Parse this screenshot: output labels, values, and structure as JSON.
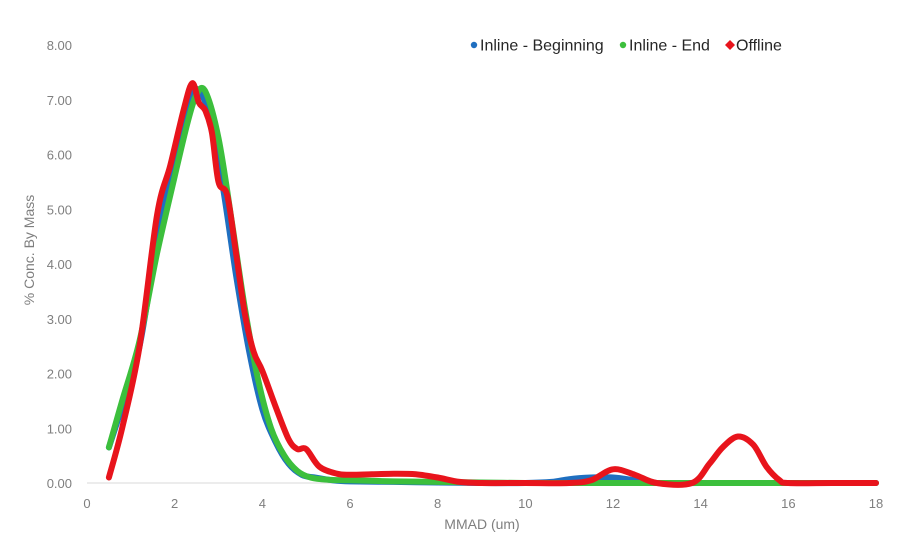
{
  "chart_data": {
    "type": "line",
    "xlabel": "MMAD (um)",
    "ylabel": "% Conc. By Mass",
    "xlim": [
      0,
      18
    ],
    "ylim": [
      0,
      8
    ],
    "x_ticks": [
      "0",
      "2",
      "4",
      "6",
      "8",
      "10",
      "12",
      "14",
      "16",
      "18"
    ],
    "y_ticks": [
      "0.00",
      "1.00",
      "2.00",
      "3.00",
      "4.00",
      "5.00",
      "6.00",
      "7.00",
      "8.00"
    ],
    "grid": false,
    "legend_position": "top-right",
    "series": [
      {
        "name": "Inline - Beginning",
        "color": "#1f6fc0",
        "marker": "circle",
        "x": [
          0.5,
          0.8,
          1.2,
          1.6,
          2.0,
          2.3,
          2.5,
          2.8,
          3.1,
          3.4,
          3.7,
          4.0,
          4.3,
          4.6,
          4.9,
          5.2,
          5.6,
          6.0,
          7.0,
          8.0,
          9.0,
          10.0,
          10.6,
          11.0,
          11.5,
          12.0,
          12.5,
          13.0,
          14.0,
          15.0,
          16.0,
          17.0,
          18.0
        ],
        "y": [
          0.65,
          1.4,
          2.5,
          4.4,
          5.9,
          6.8,
          7.2,
          6.7,
          5.4,
          3.8,
          2.4,
          1.35,
          0.75,
          0.35,
          0.15,
          0.1,
          0.05,
          0.03,
          0.02,
          0.01,
          0.0,
          0.0,
          0.02,
          0.07,
          0.1,
          0.1,
          0.05,
          0.0,
          0.0,
          0.0,
          0.0,
          0.0,
          0.0
        ]
      },
      {
        "name": "Inline - End",
        "color": "#3cbf3c",
        "marker": "circle",
        "x": [
          0.5,
          0.8,
          1.2,
          1.6,
          2.0,
          2.3,
          2.5,
          2.7,
          3.0,
          3.3,
          3.6,
          3.9,
          4.2,
          4.5,
          4.8,
          5.1,
          5.5,
          6.0,
          7.0,
          8.0,
          9.0,
          10.0,
          11.0,
          12.0,
          13.0,
          14.0,
          15.0,
          16.0,
          17.0,
          18.0
        ],
        "y": [
          0.65,
          1.5,
          2.6,
          4.2,
          5.6,
          6.6,
          7.1,
          7.15,
          6.3,
          4.8,
          3.2,
          1.9,
          1.0,
          0.5,
          0.22,
          0.1,
          0.06,
          0.05,
          0.03,
          0.02,
          0.01,
          0.0,
          0.0,
          0.0,
          0.0,
          0.0,
          0.0,
          0.0,
          0.0,
          0.0
        ]
      },
      {
        "name": "Offline",
        "color": "#e8141c",
        "marker": "diamond",
        "x": [
          0.5,
          0.8,
          1.2,
          1.6,
          1.9,
          2.2,
          2.4,
          2.55,
          2.7,
          2.85,
          3.0,
          3.2,
          3.4,
          3.6,
          3.8,
          4.0,
          4.3,
          4.6,
          4.8,
          5.0,
          5.3,
          5.7,
          6.0,
          6.5,
          7.0,
          7.5,
          8.0,
          8.5,
          9.0,
          10.0,
          11.0,
          11.5,
          12.0,
          12.5,
          13.0,
          13.8,
          14.2,
          14.5,
          14.85,
          15.2,
          15.5,
          15.8,
          16.0,
          17.0,
          18.0
        ],
        "y": [
          0.1,
          1.0,
          2.5,
          4.9,
          5.8,
          6.8,
          7.3,
          6.95,
          6.8,
          6.4,
          5.5,
          5.25,
          4.2,
          3.1,
          2.4,
          2.05,
          1.4,
          0.8,
          0.62,
          0.62,
          0.3,
          0.17,
          0.15,
          0.16,
          0.17,
          0.16,
          0.1,
          0.02,
          0.0,
          0.0,
          0.0,
          0.05,
          0.25,
          0.15,
          0.0,
          0.0,
          0.35,
          0.65,
          0.85,
          0.7,
          0.3,
          0.05,
          0.0,
          0.0,
          0.0
        ]
      }
    ]
  }
}
